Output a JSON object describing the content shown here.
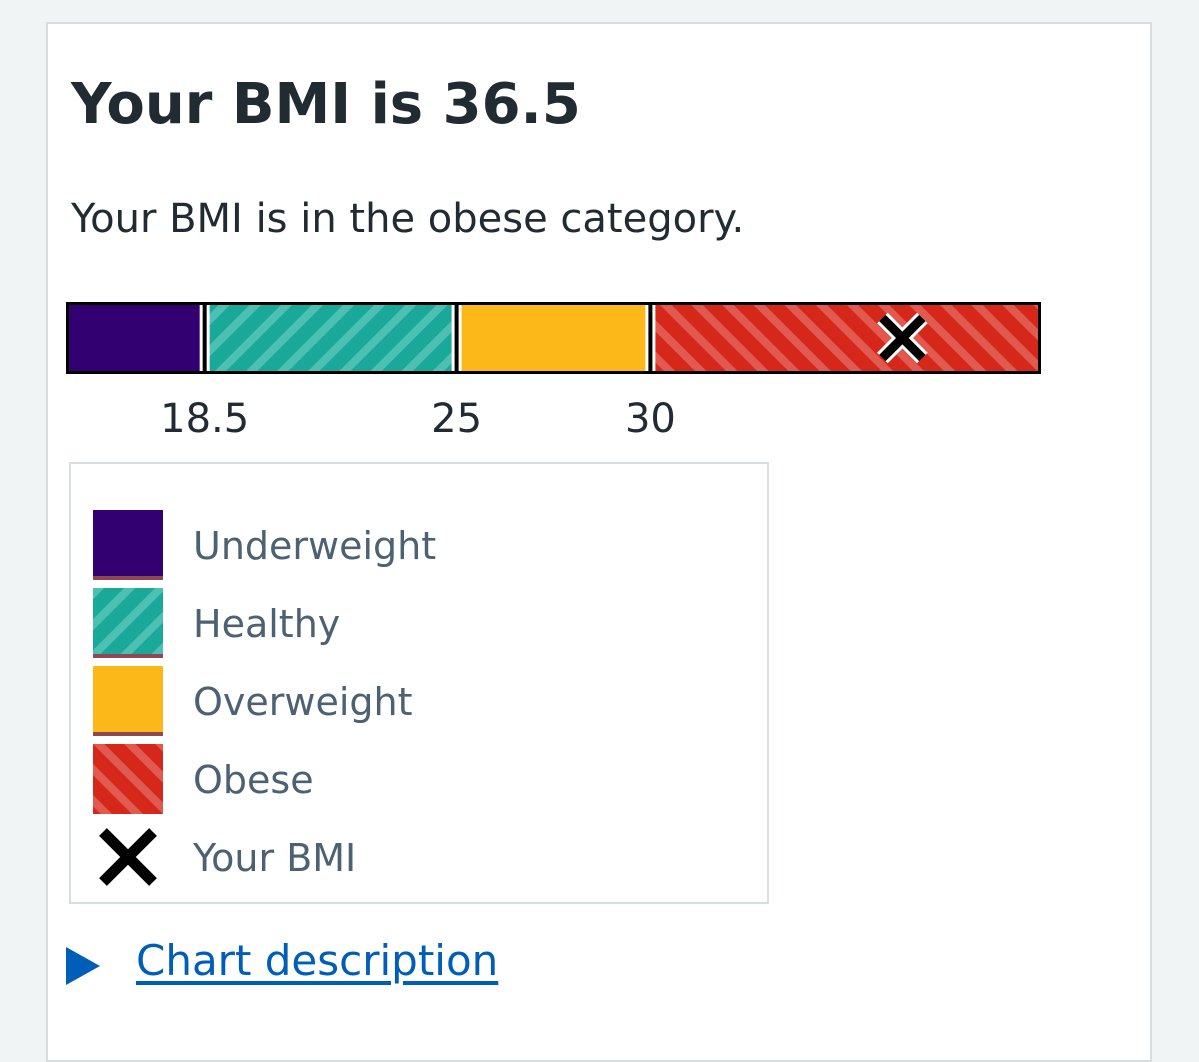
{
  "result": {
    "title": "Your BMI is 36.5",
    "description": "Your BMI is in the obese category."
  },
  "chart_data": {
    "type": "bar",
    "title": "Your BMI is 36.5",
    "bmi_value": 36.5,
    "range": [
      15,
      40
    ],
    "segments": [
      {
        "name": "Underweight",
        "from": 15,
        "to": 18.5,
        "color": "#330072",
        "pattern": "solid"
      },
      {
        "name": "Healthy",
        "from": 18.5,
        "to": 25,
        "color": "#1aa898",
        "pattern": "stripes-forward"
      },
      {
        "name": "Overweight",
        "from": 25,
        "to": 30,
        "color": "#fcb819",
        "pattern": "solid"
      },
      {
        "name": "Obese",
        "from": 30,
        "to": 40,
        "color": "#d5281b",
        "pattern": "stripes-back"
      }
    ],
    "ticks": [
      "18.5",
      "25",
      "30"
    ],
    "tick_values": [
      18.5,
      25,
      30
    ],
    "marker_icon": "x-mark-icon"
  },
  "legend": {
    "items": [
      {
        "label": "Underweight",
        "color": "#330072"
      },
      {
        "label": "Healthy",
        "color": "#1aa898"
      },
      {
        "label": "Overweight",
        "color": "#fcb819"
      },
      {
        "label": "Obese",
        "color": "#d5281b"
      }
    ],
    "marker_label": "Your BMI"
  },
  "details": {
    "summary": "Chart description"
  },
  "colors": {
    "text": "#212b32",
    "secondary_text": "#4c6272",
    "link": "#005eb8",
    "border": "#d8dde0",
    "background": "#f0f4f5"
  }
}
